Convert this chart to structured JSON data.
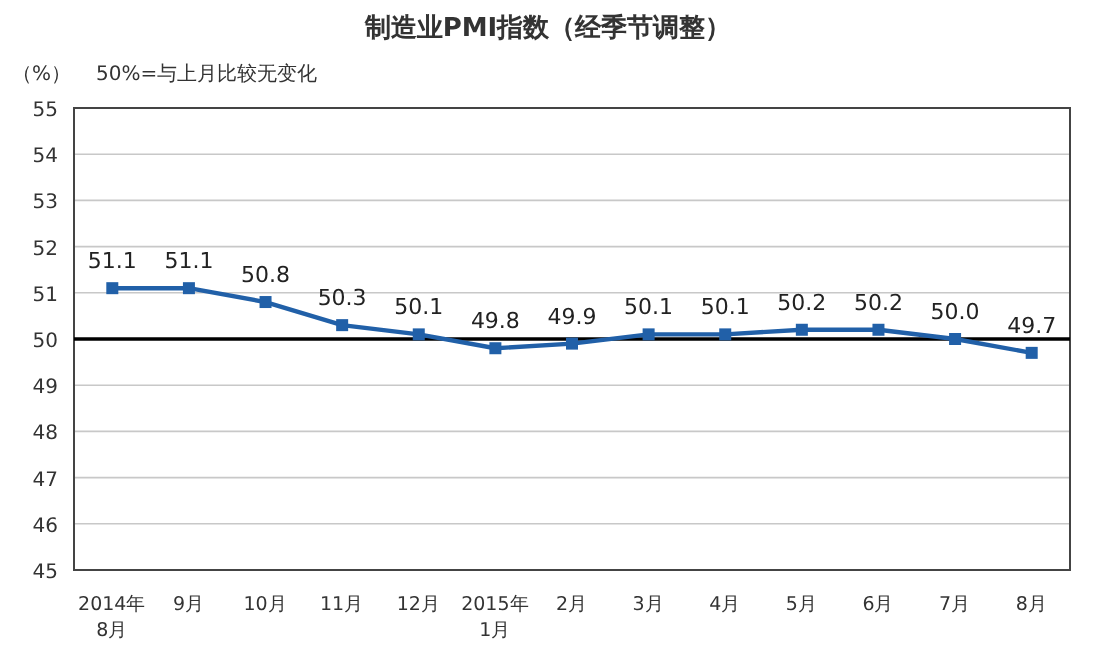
{
  "chart_data": {
    "type": "line",
    "title": "制造业PMI指数（经季节调整）",
    "ylabel": "（%）",
    "annotations": [
      "50%=与上月比较无变化"
    ],
    "categories": [
      "2014年\n8月",
      "9月",
      "10月",
      "11月",
      "12月",
      "2015年\n1月",
      "2月",
      "3月",
      "4月",
      "5月",
      "6月",
      "7月",
      "8月"
    ],
    "series": [
      {
        "color": "#2160a8",
        "values": [
          51.1,
          51.1,
          50.8,
          50.3,
          50.1,
          49.8,
          49.9,
          50.1,
          50.1,
          50.2,
          50.2,
          50.0,
          49.7
        ],
        "value_labels": [
          "51.1",
          "51.1",
          "50.8",
          "50.3",
          "50.1",
          "49.8",
          "49.9",
          "50.1",
          "50.1",
          "50.2",
          "50.2",
          "50.0",
          "49.7"
        ]
      }
    ],
    "ylim": [
      45,
      55
    ],
    "yticks": [
      45,
      46,
      47,
      48,
      49,
      50,
      51,
      52,
      53,
      54,
      55
    ],
    "grid": "y",
    "marker": "square",
    "ref_lines": [
      {
        "axis": "y",
        "value": 50,
        "color": "#000000"
      }
    ]
  }
}
